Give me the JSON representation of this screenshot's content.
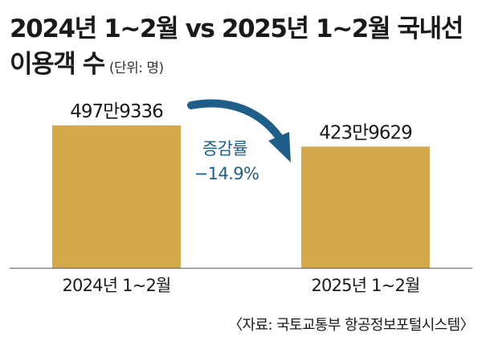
{
  "title": {
    "line1": "2024년 1~2월 vs 2025년 1~2월 국내선",
    "line2": "이용객 수",
    "unit": "(단위: 명)"
  },
  "chart_data": {
    "type": "bar",
    "title": "2024년 1~2월 vs 2025년 1~2월 국내선 이용객 수",
    "unit": "(단위: 명)",
    "categories": [
      "2024년 1~2월",
      "2025년 1~2월"
    ],
    "values": [
      4979336,
      4239629
    ],
    "data_labels": [
      "497만9336",
      "423만9629"
    ],
    "annotation": {
      "label": "증감률",
      "value": "−14.9%"
    },
    "grid": false,
    "legend": "none"
  },
  "colors": {
    "bar": "#d4a94b",
    "arrow": "#1f5e88",
    "annotation_text": "#1f5e88",
    "axis": "#666666"
  },
  "source": "〈자료: 국토교통부 항공정보포털시스템〉"
}
